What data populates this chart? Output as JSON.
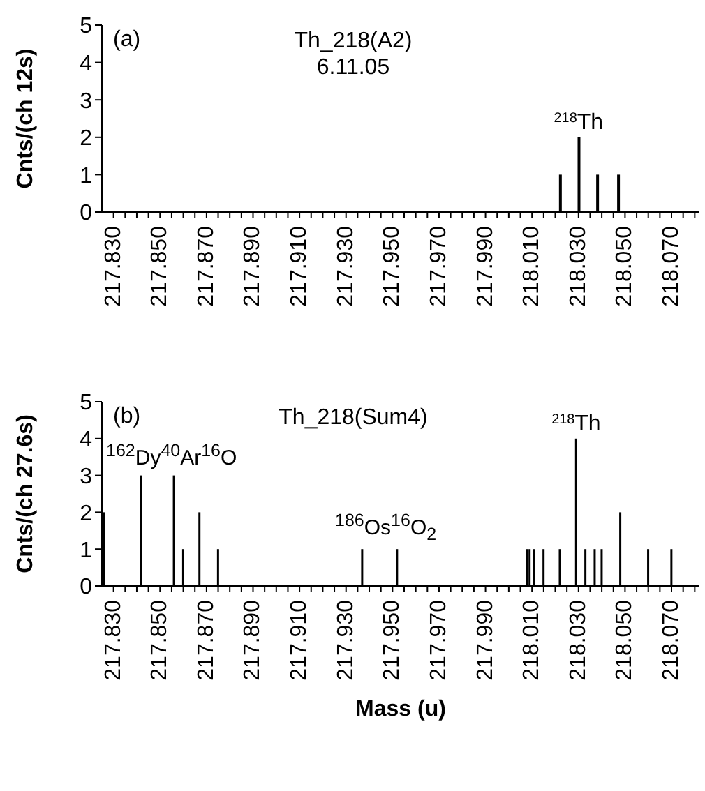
{
  "chart_data": [
    {
      "type": "bar",
      "title": "Th_218(A2)",
      "subtitle": "6.11.05",
      "ylabel": "Cnts/(ch 12s)",
      "x": [
        218.022,
        218.03,
        218.038,
        218.047
      ],
      "series": [
        {
          "color": "#000000",
          "values": [
            1,
            2,
            1,
            1
          ]
        }
      ],
      "annotations": [
        "(a)",
        {
          "text": "$^{218}$Th",
          "x": 218.03,
          "y": 2
        }
      ],
      "xlim": [
        217.825,
        218.082
      ],
      "ylim": [
        0,
        5
      ],
      "yticks": [
        0,
        1,
        2,
        3,
        4,
        5
      ],
      "xticks": [
        {
          "value": 217.83,
          "label": "217.830"
        },
        {
          "value": 217.835,
          "label": null
        },
        {
          "value": 217.84,
          "label": null
        },
        {
          "value": 217.845,
          "label": null
        },
        {
          "value": 217.85,
          "label": "217.850"
        },
        {
          "value": 217.855,
          "label": null
        },
        {
          "value": 217.86,
          "label": null
        },
        {
          "value": 217.865,
          "label": null
        },
        {
          "value": 217.87,
          "label": "217.870"
        },
        {
          "value": 217.875,
          "label": null
        },
        {
          "value": 217.88,
          "label": null
        },
        {
          "value": 217.885,
          "label": null
        },
        {
          "value": 217.89,
          "label": "217.890"
        },
        {
          "value": 217.895,
          "label": null
        },
        {
          "value": 217.9,
          "label": null
        },
        {
          "value": 217.905,
          "label": null
        },
        {
          "value": 217.91,
          "label": "217.910"
        },
        {
          "value": 217.915,
          "label": null
        },
        {
          "value": 217.92,
          "label": null
        },
        {
          "value": 217.925,
          "label": null
        },
        {
          "value": 217.93,
          "label": "217.930"
        },
        {
          "value": 217.935,
          "label": null
        },
        {
          "value": 217.94,
          "label": null
        },
        {
          "value": 217.945,
          "label": null
        },
        {
          "value": 217.95,
          "label": "217.950"
        },
        {
          "value": 217.955,
          "label": null
        },
        {
          "value": 217.96,
          "label": null
        },
        {
          "value": 217.965,
          "label": null
        },
        {
          "value": 217.97,
          "label": "217.970"
        },
        {
          "value": 217.975,
          "label": null
        },
        {
          "value": 217.98,
          "label": null
        },
        {
          "value": 217.985,
          "label": null
        },
        {
          "value": 217.99,
          "label": "217.990"
        },
        {
          "value": 217.995,
          "label": null
        },
        {
          "value": 218.0,
          "label": null
        },
        {
          "value": 218.005,
          "label": null
        },
        {
          "value": 218.01,
          "label": "218.010"
        },
        {
          "value": 218.015,
          "label": null
        },
        {
          "value": 218.02,
          "label": null
        },
        {
          "value": 218.025,
          "label": null
        },
        {
          "value": 218.03,
          "label": "218.030"
        },
        {
          "value": 218.035,
          "label": null
        },
        {
          "value": 218.04,
          "label": null
        },
        {
          "value": 218.045,
          "label": null
        },
        {
          "value": 218.05,
          "label": "218.050"
        },
        {
          "value": 218.055,
          "label": null
        },
        {
          "value": 218.06,
          "label": null
        },
        {
          "value": 218.065,
          "label": null
        },
        {
          "value": 218.07,
          "label": "218.070"
        },
        {
          "value": 218.075,
          "label": null
        },
        {
          "value": 218.08,
          "label": null
        }
      ]
    },
    {
      "type": "bar",
      "title": "Th_218(Sum4)",
      "ylabel": "Cnts/(ch 27.6s)",
      "xlabel": "Mass (u)",
      "x": [
        217.826,
        217.842,
        217.856,
        217.86,
        217.867,
        217.875,
        217.937,
        217.952,
        218.008,
        218.009,
        218.011,
        218.015,
        218.022,
        218.029,
        218.033,
        218.037,
        218.04,
        218.048,
        218.06,
        218.07
      ],
      "series": [
        {
          "color": "#000000",
          "values": [
            2,
            3,
            3,
            1,
            2,
            1,
            1,
            1,
            1,
            1,
            1,
            1,
            1,
            4,
            1,
            1,
            1,
            2,
            1,
            1
          ]
        }
      ],
      "annotations": [
        "(b)",
        {
          "text": "$^{218}$Th",
          "x": 218.029,
          "y": 4
        },
        "$^{162}$Dy$^{40}$Ar$^{16}$O",
        "$^{186}$Os$^{16}$O$_{2}$"
      ],
      "xlim": [
        217.825,
        218.082
      ],
      "ylim": [
        0,
        5
      ],
      "yticks": [
        0,
        1,
        2,
        3,
        4,
        5
      ],
      "xticks": [
        {
          "value": 217.83,
          "label": "217.830"
        },
        {
          "value": 217.835,
          "label": null
        },
        {
          "value": 217.84,
          "label": null
        },
        {
          "value": 217.845,
          "label": null
        },
        {
          "value": 217.85,
          "label": "217.850"
        },
        {
          "value": 217.855,
          "label": null
        },
        {
          "value": 217.86,
          "label": null
        },
        {
          "value": 217.865,
          "label": null
        },
        {
          "value": 217.87,
          "label": "217.870"
        },
        {
          "value": 217.875,
          "label": null
        },
        {
          "value": 217.88,
          "label": null
        },
        {
          "value": 217.885,
          "label": null
        },
        {
          "value": 217.89,
          "label": "217.890"
        },
        {
          "value": 217.895,
          "label": null
        },
        {
          "value": 217.9,
          "label": null
        },
        {
          "value": 217.905,
          "label": null
        },
        {
          "value": 217.91,
          "label": "217.910"
        },
        {
          "value": 217.915,
          "label": null
        },
        {
          "value": 217.92,
          "label": null
        },
        {
          "value": 217.925,
          "label": null
        },
        {
          "value": 217.93,
          "label": "217.930"
        },
        {
          "value": 217.935,
          "label": null
        },
        {
          "value": 217.94,
          "label": null
        },
        {
          "value": 217.945,
          "label": null
        },
        {
          "value": 217.95,
          "label": "217.950"
        },
        {
          "value": 217.955,
          "label": null
        },
        {
          "value": 217.96,
          "label": null
        },
        {
          "value": 217.965,
          "label": null
        },
        {
          "value": 217.97,
          "label": "217.970"
        },
        {
          "value": 217.975,
          "label": null
        },
        {
          "value": 217.98,
          "label": null
        },
        {
          "value": 217.985,
          "label": null
        },
        {
          "value": 217.99,
          "label": "217.990"
        },
        {
          "value": 217.995,
          "label": null
        },
        {
          "value": 218.0,
          "label": null
        },
        {
          "value": 218.005,
          "label": null
        },
        {
          "value": 218.01,
          "label": "218.010"
        },
        {
          "value": 218.015,
          "label": null
        },
        {
          "value": 218.02,
          "label": null
        },
        {
          "value": 218.025,
          "label": null
        },
        {
          "value": 218.03,
          "label": "218.030"
        },
        {
          "value": 218.035,
          "label": null
        },
        {
          "value": 218.04,
          "label": null
        },
        {
          "value": 218.045,
          "label": null
        },
        {
          "value": 218.05,
          "label": "218.050"
        },
        {
          "value": 218.055,
          "label": null
        },
        {
          "value": 218.06,
          "label": null
        },
        {
          "value": 218.065,
          "label": null
        },
        {
          "value": 218.07,
          "label": "218.070"
        },
        {
          "value": 218.075,
          "label": null
        },
        {
          "value": 218.08,
          "label": null
        }
      ]
    }
  ]
}
